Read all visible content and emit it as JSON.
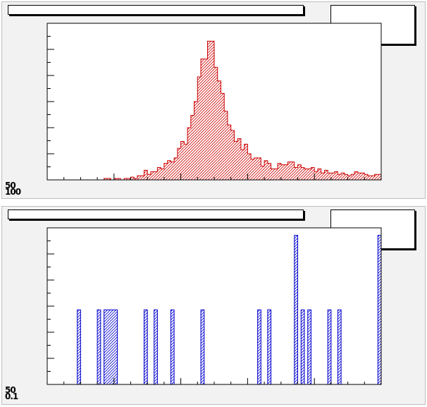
{
  "window": {
    "background": "#f2f2f2",
    "frame": "#ffffff"
  },
  "panels": [
    {
      "title": "",
      "stats": [],
      "y_axis_text": [
        "50",
        "100"
      ],
      "x_axis_text": "",
      "fill_color": "#cc0000",
      "fill_pattern": "diagonal-hatch"
    },
    {
      "title": "",
      "stats": [],
      "y_axis_text": [
        "50",
        "0.1"
      ],
      "x_axis_text": "",
      "fill_color": "#0000cc",
      "fill_pattern": "diagonal-hatch"
    }
  ],
  "chart_data": [
    {
      "type": "bar",
      "style": "histogram-step",
      "title": "",
      "xlabel": "",
      "ylabel": "",
      "n_bins": 100,
      "ylim": [
        0,
        1.14
      ],
      "grid": false,
      "color": "#cc0000",
      "values": [
        0,
        0,
        0,
        0,
        0,
        0,
        0,
        0,
        0,
        0,
        0,
        0,
        0,
        0,
        0,
        0,
        0,
        0.01,
        0.01,
        0,
        0.01,
        0.01,
        0,
        0.01,
        0.01,
        0.02,
        0.01,
        0.03,
        0.03,
        0.07,
        0.04,
        0.06,
        0.06,
        0.09,
        0.08,
        0.12,
        0.14,
        0.13,
        0.16,
        0.23,
        0.28,
        0.26,
        0.38,
        0.47,
        0.57,
        0.75,
        0.88,
        0.88,
        1.01,
        1.01,
        0.82,
        0.72,
        0.63,
        0.5,
        0.4,
        0.36,
        0.28,
        0.3,
        0.22,
        0.26,
        0.19,
        0.15,
        0.16,
        0.16,
        0.1,
        0.14,
        0.12,
        0.08,
        0.08,
        0.12,
        0.11,
        0.11,
        0.13,
        0.13,
        0.09,
        0.11,
        0.09,
        0.08,
        0.08,
        0.09,
        0.06,
        0.08,
        0.05,
        0.07,
        0.05,
        0.05,
        0.06,
        0.04,
        0.05,
        0.04,
        0.03,
        0.04,
        0.06,
        0.05,
        0.05,
        0.04,
        0.03,
        0.03,
        0.04,
        0.04
      ]
    },
    {
      "type": "bar",
      "style": "histogram-step",
      "title": "",
      "xlabel": "",
      "ylabel": "",
      "n_bins": 100,
      "ylim": [
        0,
        2.1
      ],
      "grid": false,
      "color": "#0000cc",
      "values": [
        0,
        0,
        0,
        0,
        0,
        0,
        0,
        0,
        0,
        1,
        0,
        0,
        0,
        0,
        0,
        1,
        0,
        1,
        1,
        1,
        1,
        0,
        0,
        0,
        0,
        0,
        0,
        0,
        0,
        1,
        0,
        0,
        1,
        0,
        0,
        0,
        0,
        1,
        0,
        0,
        0,
        0,
        0,
        0,
        0,
        0,
        1,
        0,
        0,
        0,
        0,
        0,
        0,
        0,
        0,
        0,
        0,
        0,
        0,
        0,
        0,
        0,
        0,
        1,
        0,
        0,
        1,
        0,
        0,
        0,
        0,
        0,
        0,
        0,
        2,
        0,
        1,
        0,
        1,
        0,
        0,
        0,
        0,
        0,
        1,
        0,
        0,
        1,
        0,
        0,
        0,
        0,
        0,
        0,
        0,
        0,
        0,
        0,
        0,
        2
      ]
    }
  ]
}
